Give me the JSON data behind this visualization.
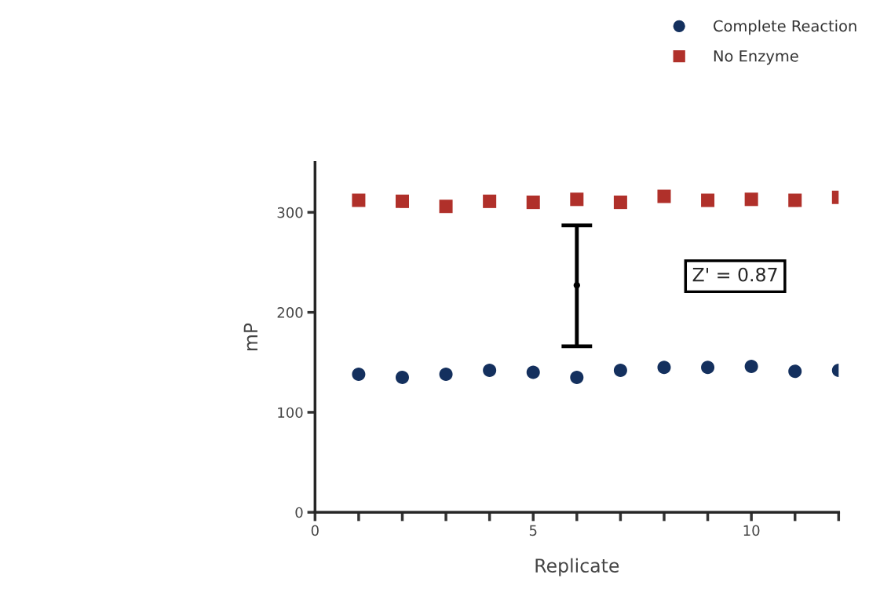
{
  "chart_data": {
    "type": "scatter",
    "xlabel": "Replicate",
    "ylabel": "mP",
    "x": [
      1,
      2,
      3,
      4,
      5,
      6,
      7,
      8,
      9,
      10,
      11,
      12
    ],
    "series": [
      {
        "name": "Complete Reaction",
        "color": "#14305e",
        "marker": "circle",
        "values": [
          138,
          135,
          138,
          142,
          140,
          135,
          142,
          145,
          145,
          146,
          141,
          142
        ]
      },
      {
        "name": "No Enzyme",
        "color": "#b0302a",
        "marker": "square",
        "values": [
          312,
          311,
          306,
          311,
          310,
          313,
          310,
          316,
          312,
          313,
          312,
          315
        ]
      },
      {
        "x": [
          6
        ],
        "color": "#000000",
        "marker": "circle",
        "values": [
          227
        ],
        "errors": [
          [
            166,
            287
          ]
        ]
      }
    ],
    "annotations": [
      "Z' = 0.87"
    ],
    "xlim": [
      0,
      12
    ],
    "xticks": [
      0,
      {
        "value": 1,
        "label": null
      },
      {
        "value": 2,
        "label": null
      },
      {
        "value": 3,
        "label": null
      },
      {
        "value": 4,
        "label": null
      },
      5,
      {
        "value": 6,
        "label": null
      },
      {
        "value": 7,
        "label": null
      },
      {
        "value": 8,
        "label": null
      },
      {
        "value": 9,
        "label": null
      },
      10,
      {
        "value": 11,
        "label": null
      },
      {
        "value": 12,
        "label": null
      }
    ],
    "ylim": [
      0,
      350
    ],
    "yticks": [
      0,
      100,
      200,
      300
    ],
    "grid": false,
    "legend": "top right"
  }
}
